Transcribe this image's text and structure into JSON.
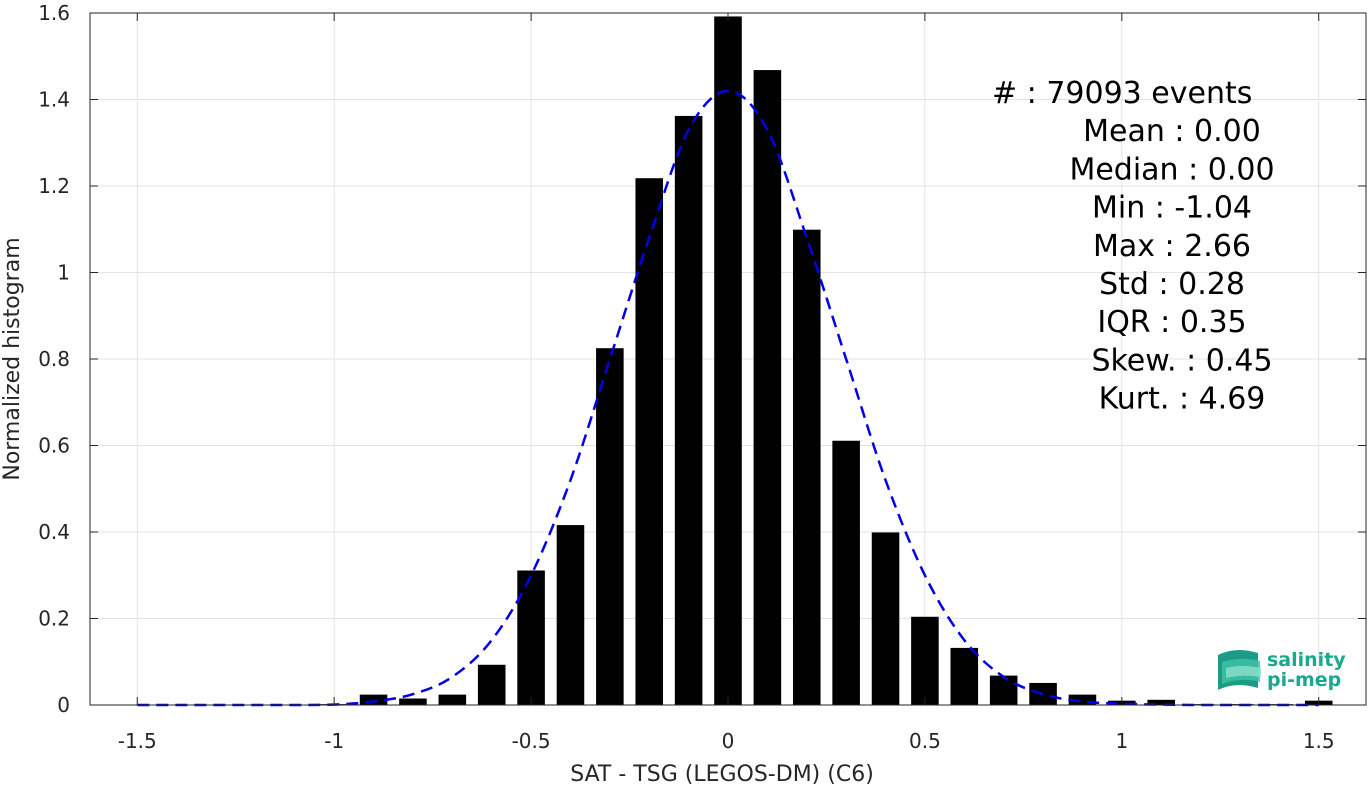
{
  "chart_data": {
    "type": "bar",
    "xlabel": "SAT - TSG (LEGOS-DM) (C6)",
    "ylabel": "Normalized histogram",
    "xlim": [
      -1.62,
      1.62
    ],
    "ylim": [
      0,
      1.6
    ],
    "x_ticks": [
      "-1.5",
      "-1",
      "-0.5",
      "0",
      "0.5",
      "1",
      "1.5"
    ],
    "y_ticks": [
      "0",
      "0.2",
      "0.4",
      "0.6",
      "0.8",
      "1",
      "1.2",
      "1.4",
      "1.6"
    ],
    "grid": true,
    "bar_color": "#000000",
    "bar_width": 0.07,
    "bars": {
      "x": [
        -1.5,
        -1.4,
        -1.3,
        -1.2,
        -1.1,
        -1.0,
        -0.9,
        -0.8,
        -0.7,
        -0.6,
        -0.5,
        -0.4,
        -0.3,
        -0.2,
        -0.1,
        0.0,
        0.1,
        0.2,
        0.3,
        0.4,
        0.5,
        0.6,
        0.7,
        0.8,
        0.9,
        1.0,
        1.1,
        1.2,
        1.3,
        1.4,
        1.5
      ],
      "values": [
        0,
        0,
        0,
        0,
        0,
        0.002,
        0.024,
        0.015,
        0.024,
        0.093,
        0.311,
        0.416,
        0.825,
        1.218,
        1.362,
        1.592,
        1.468,
        1.099,
        0.611,
        0.399,
        0.204,
        0.132,
        0.068,
        0.051,
        0.024,
        0.01,
        0.012,
        0.002,
        0.002,
        0.002,
        0.01
      ]
    },
    "fit_curve": {
      "style": "dashed",
      "color": "#0000e6",
      "x": [
        -1.5,
        -1.4,
        -1.3,
        -1.2,
        -1.1,
        -1.0,
        -0.9,
        -0.8,
        -0.7,
        -0.6,
        -0.5,
        -0.4,
        -0.3,
        -0.2,
        -0.1,
        0.0,
        0.1,
        0.2,
        0.3,
        0.4,
        0.5,
        0.6,
        0.7,
        0.8,
        0.9,
        1.0,
        1.1,
        1.2,
        1.3,
        1.4,
        1.5
      ],
      "y": [
        0,
        0,
        0,
        0,
        0,
        0.001,
        0.008,
        0.025,
        0.065,
        0.15,
        0.3,
        0.52,
        0.8,
        1.08,
        1.33,
        1.42,
        1.33,
        1.08,
        0.8,
        0.52,
        0.3,
        0.15,
        0.065,
        0.025,
        0.008,
        0.003,
        0.001,
        0,
        0,
        0,
        0
      ]
    },
    "stats": [
      "#  : 79093 events",
      "Mean : 0.00",
      "Median : 0.00",
      "Min : -1.04",
      "Max : 2.66",
      "Std : 0.28",
      "IQR : 0.35",
      "Skew. : 0.45",
      "Kurt. : 4.69"
    ]
  },
  "logo": {
    "line1": "salinity",
    "line2": "pi-mep",
    "color": "#1aa88f"
  }
}
